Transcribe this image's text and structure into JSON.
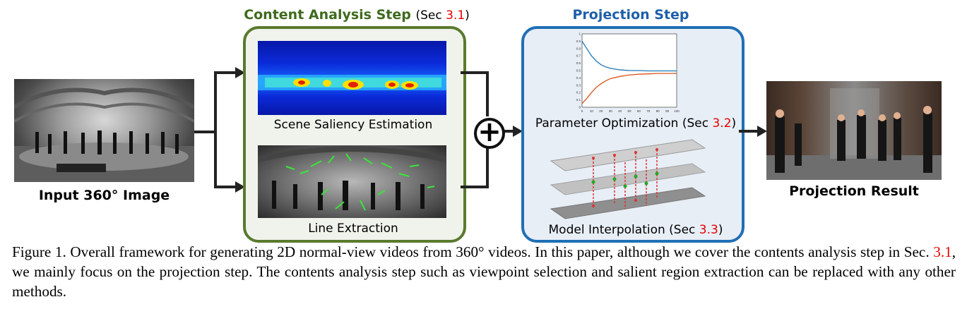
{
  "figure": {
    "input_label": "Input 360° Image",
    "content_step": {
      "title": "Content Analysis Step",
      "sec_prefix": "(Sec ",
      "sec_ref": "3.1",
      "sec_suffix": ")"
    },
    "projection_step": {
      "title": "Projection Step"
    },
    "saliency_label": "Scene Saliency Estimation",
    "line_label": "Line Extraction",
    "param_label_prefix": "Parameter Optimization (Sec ",
    "param_ref": "3.2",
    "param_suffix": ")",
    "interp_label_prefix": "Model Interpolation (Sec ",
    "interp_ref": "3.3",
    "interp_suffix": ")",
    "result_label": "Projection Result",
    "plus_symbol": "+",
    "colors": {
      "content_border": "#5a7a2e",
      "projection_border": "#1f6fb5",
      "content_title": "#3f6a1e",
      "projection_title": "#1f5fa8",
      "ref": "#e60000"
    }
  },
  "chart_data": {
    "type": "line",
    "x_ticks": [
      "0",
      "10",
      "20",
      "30",
      "40",
      "50",
      "60",
      "70",
      "80",
      "90",
      "100"
    ],
    "y_ticks": [
      "0",
      "0.1",
      "0.2",
      "0.3",
      "0.4",
      "0.5",
      "0.6",
      "0.7",
      "0.8",
      "0.9",
      "1"
    ],
    "xlim": [
      0,
      100
    ],
    "ylim": [
      0,
      1
    ],
    "series": [
      {
        "color": "#1f77b4",
        "x": [
          0,
          5,
          10,
          15,
          20,
          25,
          30,
          40,
          50,
          60,
          70,
          80,
          90,
          100
        ],
        "values": [
          0.9,
          0.8,
          0.7,
          0.63,
          0.58,
          0.55,
          0.53,
          0.51,
          0.5,
          0.5,
          0.495,
          0.495,
          0.495,
          0.495
        ]
      },
      {
        "color": "#d95319",
        "x": [
          0,
          5,
          10,
          15,
          20,
          25,
          30,
          40,
          50,
          60,
          70,
          80,
          90,
          100
        ],
        "values": [
          0.05,
          0.12,
          0.2,
          0.27,
          0.32,
          0.36,
          0.39,
          0.42,
          0.44,
          0.45,
          0.455,
          0.46,
          0.46,
          0.46
        ]
      }
    ]
  },
  "caption": {
    "part1": "Figure 1.   Overall framework for generating 2D normal-view videos from 360° videos.  In this paper, although we cover the contents analysis step in Sec. ",
    "ref": "3.1",
    "part2": ", we mainly focus on the projection step. The contents analysis step such as viewpoint selection and salient region extraction can be replaced with any other methods."
  }
}
